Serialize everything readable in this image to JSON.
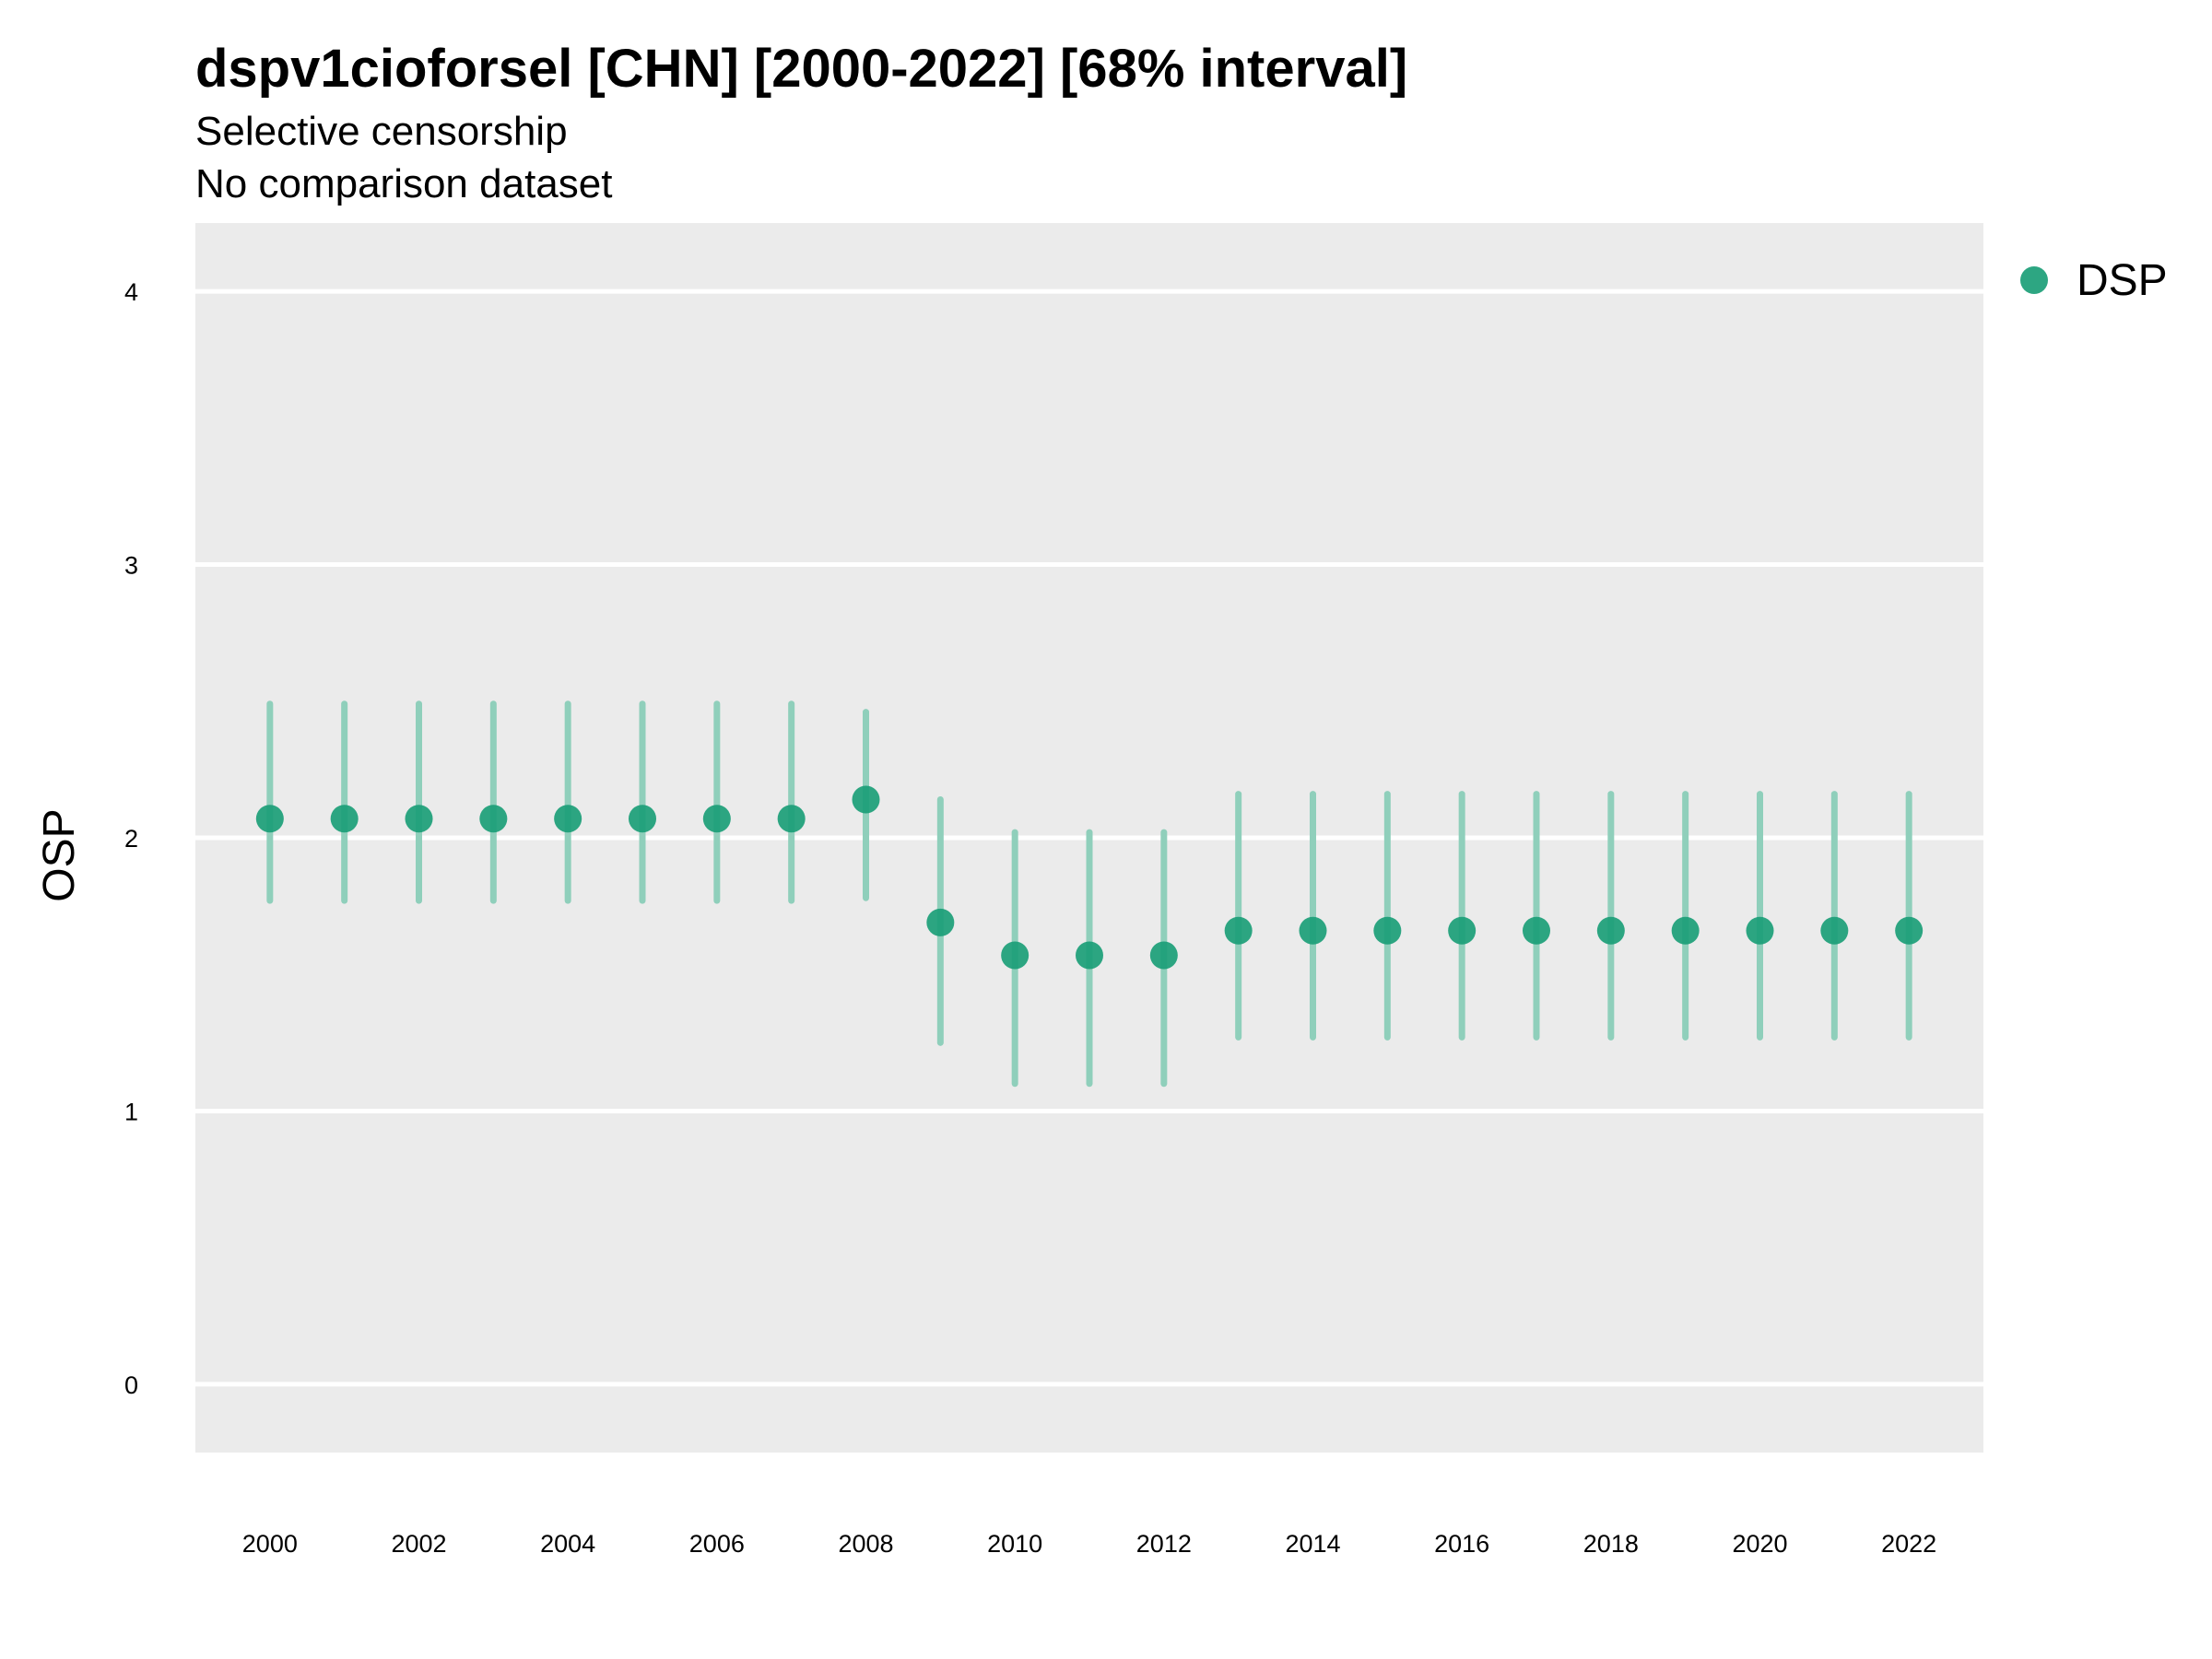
{
  "chart_data": {
    "type": "scatter",
    "title": "dspv1cioforsel [CHN] [2000-2022] [68% interval]",
    "subtitles": [
      "Selective censorship",
      "No comparison dataset"
    ],
    "xlabel": "",
    "ylabel": "OSP",
    "xlim": [
      1999,
      2023
    ],
    "ylim": [
      -0.25,
      4.25
    ],
    "y_ticks": [
      "0",
      "1",
      "2",
      "3",
      "4"
    ],
    "x_ticks": [
      "2000",
      "2002",
      "2004",
      "2006",
      "2008",
      "2010",
      "2012",
      "2014",
      "2016",
      "2018",
      "2020",
      "2022"
    ],
    "grid": true,
    "legend_position": "right",
    "series": [
      {
        "name": "DSP",
        "color": "#1b9e77",
        "interval_color": "#8fcfbb",
        "points": [
          {
            "x": 2000,
            "y": 2.07,
            "lo": 1.77,
            "hi": 2.49
          },
          {
            "x": 2001,
            "y": 2.07,
            "lo": 1.77,
            "hi": 2.49
          },
          {
            "x": 2002,
            "y": 2.07,
            "lo": 1.77,
            "hi": 2.49
          },
          {
            "x": 2003,
            "y": 2.07,
            "lo": 1.77,
            "hi": 2.49
          },
          {
            "x": 2004,
            "y": 2.07,
            "lo": 1.77,
            "hi": 2.49
          },
          {
            "x": 2005,
            "y": 2.07,
            "lo": 1.77,
            "hi": 2.49
          },
          {
            "x": 2006,
            "y": 2.07,
            "lo": 1.77,
            "hi": 2.49
          },
          {
            "x": 2007,
            "y": 2.07,
            "lo": 1.77,
            "hi": 2.49
          },
          {
            "x": 2008,
            "y": 2.14,
            "lo": 1.78,
            "hi": 2.46
          },
          {
            "x": 2009,
            "y": 1.69,
            "lo": 1.25,
            "hi": 2.14
          },
          {
            "x": 2010,
            "y": 1.57,
            "lo": 1.1,
            "hi": 2.02
          },
          {
            "x": 2011,
            "y": 1.57,
            "lo": 1.1,
            "hi": 2.02
          },
          {
            "x": 2012,
            "y": 1.57,
            "lo": 1.1,
            "hi": 2.02
          },
          {
            "x": 2013,
            "y": 1.66,
            "lo": 1.27,
            "hi": 2.16
          },
          {
            "x": 2014,
            "y": 1.66,
            "lo": 1.27,
            "hi": 2.16
          },
          {
            "x": 2015,
            "y": 1.66,
            "lo": 1.27,
            "hi": 2.16
          },
          {
            "x": 2016,
            "y": 1.66,
            "lo": 1.27,
            "hi": 2.16
          },
          {
            "x": 2017,
            "y": 1.66,
            "lo": 1.27,
            "hi": 2.16
          },
          {
            "x": 2018,
            "y": 1.66,
            "lo": 1.27,
            "hi": 2.16
          },
          {
            "x": 2019,
            "y": 1.66,
            "lo": 1.27,
            "hi": 2.16
          },
          {
            "x": 2020,
            "y": 1.66,
            "lo": 1.27,
            "hi": 2.16
          },
          {
            "x": 2021,
            "y": 1.66,
            "lo": 1.27,
            "hi": 2.16
          },
          {
            "x": 2022,
            "y": 1.66,
            "lo": 1.27,
            "hi": 2.16
          }
        ]
      }
    ],
    "colors": {
      "panel_background": "#ebebeb",
      "gridline": "#ffffff"
    }
  }
}
